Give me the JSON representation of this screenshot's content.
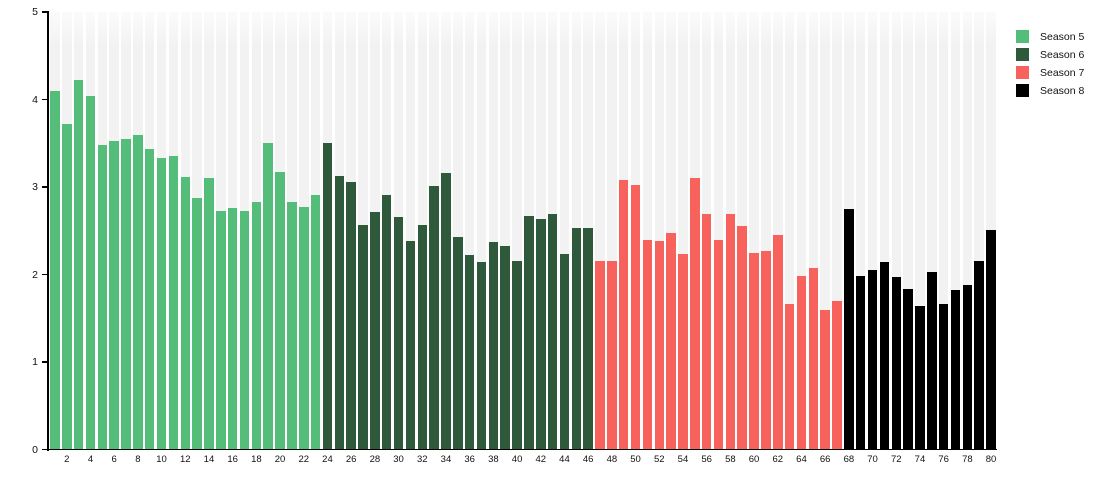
{
  "chart_data": {
    "type": "bar",
    "title": "",
    "xlabel": "",
    "ylabel": "",
    "ylim": [
      0,
      5
    ],
    "yticks": [
      0,
      1,
      2,
      3,
      4,
      5
    ],
    "xticks": [
      2,
      4,
      6,
      8,
      10,
      12,
      14,
      16,
      18,
      20,
      22,
      24,
      26,
      28,
      30,
      32,
      34,
      36,
      38,
      40,
      42,
      44,
      46,
      48,
      50,
      52,
      54,
      56,
      58,
      60,
      62,
      64,
      66,
      68,
      70,
      72,
      74,
      76,
      78,
      80
    ],
    "n_bars": 80,
    "x_start": 1,
    "grid": false,
    "legend_position": "top-right",
    "plot_background": {
      "stripes": true,
      "stripe_color": "#f2f2f2",
      "gap_color": "#ffffff",
      "fade_top": true
    },
    "axis_color": "#000000",
    "series": [
      {
        "name": "Season 5",
        "color": "#55bd7a",
        "x_range": [
          1,
          23
        ],
        "values": [
          4.1,
          3.72,
          4.22,
          4.04,
          3.48,
          3.53,
          3.55,
          3.59,
          3.43,
          3.33,
          3.36,
          3.12,
          2.88,
          3.1,
          2.73,
          2.76,
          2.73,
          2.83,
          3.5,
          3.17,
          2.83,
          2.77,
          2.91
        ]
      },
      {
        "name": "Season 6",
        "color": "#2e5a3b",
        "x_range": [
          24,
          46
        ],
        "values": [
          3.5,
          3.13,
          3.06,
          2.57,
          2.72,
          2.91,
          2.66,
          2.38,
          2.57,
          3.01,
          3.16,
          2.43,
          2.22,
          2.14,
          2.37,
          2.33,
          2.16,
          2.67,
          2.63,
          2.69,
          2.24,
          2.53,
          2.53
        ]
      },
      {
        "name": "Season 7",
        "color": "#f7625d",
        "x_range": [
          47,
          67
        ],
        "values": [
          2.16,
          2.16,
          3.08,
          3.02,
          2.39,
          2.38,
          2.47,
          2.24,
          3.1,
          2.69,
          2.4,
          2.69,
          2.55,
          2.25,
          2.27,
          2.45,
          1.66,
          1.98,
          2.07,
          1.59,
          1.7
        ]
      },
      {
        "name": "Season 8",
        "color": "#000000",
        "x_range": [
          68,
          80
        ],
        "values": [
          2.75,
          1.98,
          2.05,
          2.14,
          1.97,
          1.83,
          1.64,
          2.03,
          1.66,
          1.82,
          1.88,
          2.16,
          2.51
        ]
      }
    ]
  }
}
